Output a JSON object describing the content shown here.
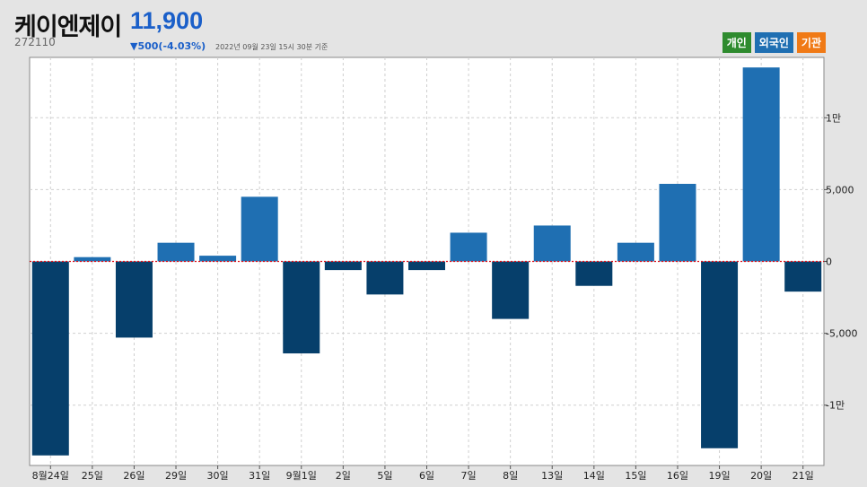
{
  "header": {
    "title": "케이엔제이",
    "price": "11,900",
    "code": "272110",
    "change": "▼500(-4.03%)",
    "timestamp": "2022년 09월 23일 15시 30분 기준"
  },
  "legend": [
    {
      "label": "개인",
      "color": "#2e8b2e"
    },
    {
      "label": "외국인",
      "color": "#1f6fb2"
    },
    {
      "label": "기관",
      "color": "#f07a16"
    }
  ],
  "colors": {
    "positive": "#1f6fb2",
    "negative": "#063f6b",
    "zero_line": "#e0101a"
  },
  "chart_data": {
    "type": "bar",
    "categories": [
      "8월24일",
      "25일",
      "26일",
      "29일",
      "30일",
      "31일",
      "9월1일",
      "2일",
      "5일",
      "6일",
      "7일",
      "8일",
      "13일",
      "14일",
      "15일",
      "16일",
      "19일",
      "20일",
      "21일"
    ],
    "values": [
      -13500,
      300,
      -5300,
      1300,
      400,
      4500,
      -6400,
      -600,
      -2300,
      -600,
      2000,
      -4000,
      2500,
      -1700,
      1300,
      5400,
      -13000,
      13500,
      -2100
    ],
    "ylim": [
      -14200,
      14200
    ],
    "y_ticks": [
      {
        "value": 10000,
        "label": "1만"
      },
      {
        "value": 5000,
        "label": "5,000"
      },
      {
        "value": 0,
        "label": "0"
      },
      {
        "value": -5000,
        "label": "-5,000"
      },
      {
        "value": -10000,
        "label": "-1만"
      }
    ],
    "grid": true
  }
}
